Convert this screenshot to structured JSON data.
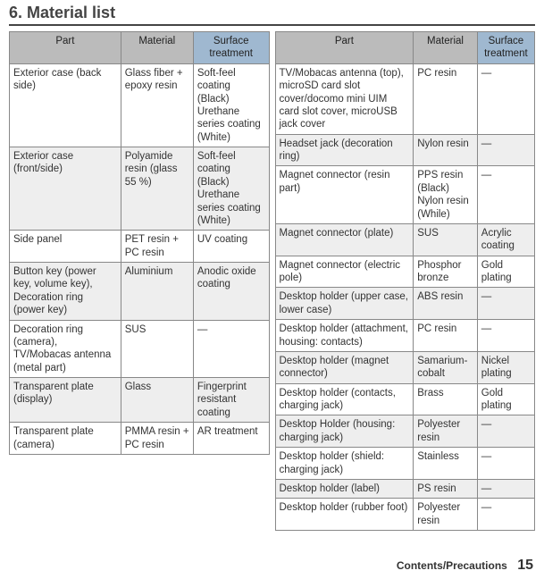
{
  "section_number": "6.",
  "section_title": "Material list",
  "headers": {
    "part": "Part",
    "material": "Material",
    "surface": "Surface treatment"
  },
  "left_rows": [
    {
      "part": "Exterior case (back side)",
      "material": "Glass fiber + epoxy resin",
      "surface": "Soft-feel coating (Black)\nUrethane series coating (White)"
    },
    {
      "part": "Exterior case (front/side)",
      "material": "Polyamide resin (glass 55 %)",
      "surface": "Soft-feel coating (Black)\nUrethane series coating (White)"
    },
    {
      "part": "Side panel",
      "material": "PET resin + PC resin",
      "surface": "UV coating"
    },
    {
      "part": "Button key (power key, volume key), Decoration ring (power key)",
      "material": "Aluminium",
      "surface": "Anodic oxide coating"
    },
    {
      "part": "Decoration ring (camera), TV/Mobacas antenna (metal part)",
      "material": "SUS",
      "surface": "—"
    },
    {
      "part": "Transparent plate (display)",
      "material": "Glass",
      "surface": "Fingerprint resistant coating"
    },
    {
      "part": "Transparent plate (camera)",
      "material": "PMMA resin + PC resin",
      "surface": "AR treatment"
    }
  ],
  "right_rows": [
    {
      "part": "TV/Mobacas antenna (top), microSD card slot cover/docomo mini UIM card slot cover, microUSB jack cover",
      "material": "PC resin",
      "surface": "—"
    },
    {
      "part": "Headset jack (decoration ring)",
      "material": "Nylon resin",
      "surface": "—"
    },
    {
      "part": "Magnet connector (resin part)",
      "material": "PPS resin (Black)\nNylon resin (While)",
      "surface": "—"
    },
    {
      "part": "Magnet connector (plate)",
      "material": "SUS",
      "surface": "Acrylic coating"
    },
    {
      "part": "Magnet connector (electric pole)",
      "material": "Phosphor bronze",
      "surface": "Gold plating"
    },
    {
      "part": "Desktop holder (upper case, lower case)",
      "material": "ABS resin",
      "surface": "—"
    },
    {
      "part": "Desktop holder (attachment, housing: contacts)",
      "material": "PC resin",
      "surface": "—"
    },
    {
      "part": "Desktop holder (magnet connector)",
      "material": "Samarium-cobalt",
      "surface": "Nickel plating"
    },
    {
      "part": "Desktop holder (contacts, charging jack)",
      "material": "Brass",
      "surface": "Gold plating"
    },
    {
      "part": "Desktop Holder (housing: charging jack)",
      "material": "Polyester resin",
      "surface": "—"
    },
    {
      "part": "Desktop holder (shield: charging jack)",
      "material": "Stainless",
      "surface": "—"
    },
    {
      "part": "Desktop holder (label)",
      "material": "PS resin",
      "surface": "—"
    },
    {
      "part": "Desktop holder (rubber foot)",
      "material": "Polyester resin",
      "surface": "—"
    }
  ],
  "footer_text": "Contents/Precautions",
  "page_number": "15"
}
